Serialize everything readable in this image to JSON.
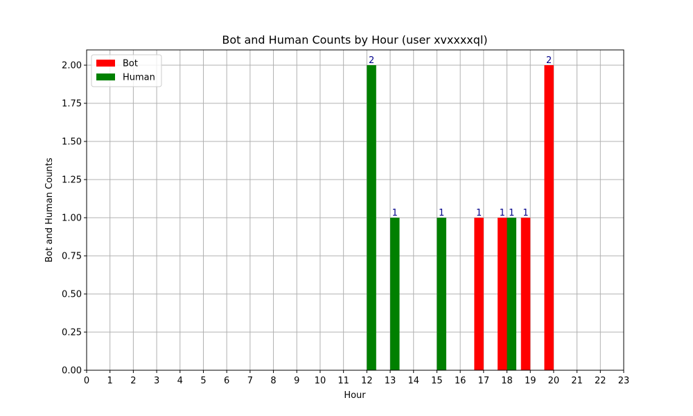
{
  "chart_data": {
    "type": "bar",
    "title": "Bot and Human Counts by Hour (user xvxxxxql)",
    "xlabel": "Hour",
    "ylabel": "Bot and Human Counts",
    "x": [
      0,
      1,
      2,
      3,
      4,
      5,
      6,
      7,
      8,
      9,
      10,
      11,
      12,
      13,
      14,
      15,
      16,
      17,
      18,
      19,
      20,
      21,
      22,
      23
    ],
    "xticks": [
      "0",
      "1",
      "2",
      "3",
      "4",
      "5",
      "6",
      "7",
      "8",
      "9",
      "10",
      "11",
      "12",
      "13",
      "14",
      "15",
      "16",
      "17",
      "18",
      "19",
      "20",
      "21",
      "22",
      "23"
    ],
    "xlim": [
      0,
      23
    ],
    "ylim": [
      0,
      2.1
    ],
    "yticks": [
      "0.00",
      "0.25",
      "0.50",
      "0.75",
      "1.00",
      "1.25",
      "1.50",
      "1.75",
      "2.00"
    ],
    "grid": true,
    "legend_position": "top-left",
    "series": [
      {
        "name": "Bot",
        "color": "#ff0000",
        "points": [
          {
            "x": 16.8,
            "value": 1
          },
          {
            "x": 17.8,
            "value": 1
          },
          {
            "x": 18.8,
            "value": 1
          },
          {
            "x": 19.8,
            "value": 2
          }
        ]
      },
      {
        "name": "Human",
        "color": "#008000",
        "points": [
          {
            "x": 12.2,
            "value": 2
          },
          {
            "x": 13.2,
            "value": 1
          },
          {
            "x": 15.2,
            "value": 1
          },
          {
            "x": 18.2,
            "value": 1
          }
        ]
      }
    ],
    "bar_width": 0.4
  }
}
